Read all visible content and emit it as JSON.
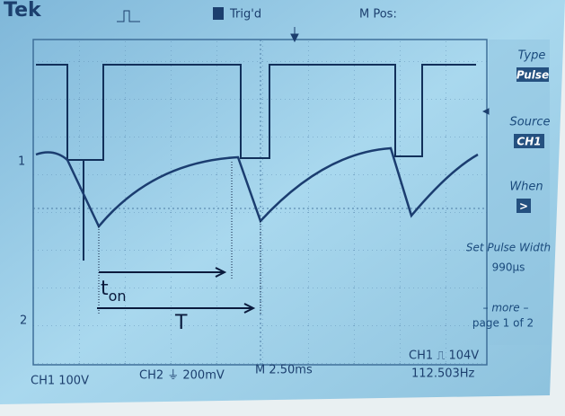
{
  "header": {
    "brand": "Tek",
    "trigger_status": "Trig'd",
    "position_label": "M Pos:"
  },
  "channel_markers": [
    "1",
    "2"
  ],
  "menu": [
    {
      "label": "Type",
      "value": "Pulse"
    },
    {
      "label": "Source",
      "value": "CH1"
    },
    {
      "label": "When",
      "value": ">"
    },
    {
      "label": "Set Pulse Width",
      "value": "990µs"
    },
    {
      "label": "– more –",
      "value": "page 1 of 2"
    }
  ],
  "footer": {
    "ch1_scale": "CH1  100V",
    "ch2_scale": "CH2 ⏚ 200mV",
    "time_scale": "M 2.50ms",
    "trigger": "CH1 ⎍ 104V",
    "frequency": "112.503Hz"
  },
  "annotations": {
    "t_on_base": "t",
    "t_on_subscript": "on",
    "period": "T"
  }
}
